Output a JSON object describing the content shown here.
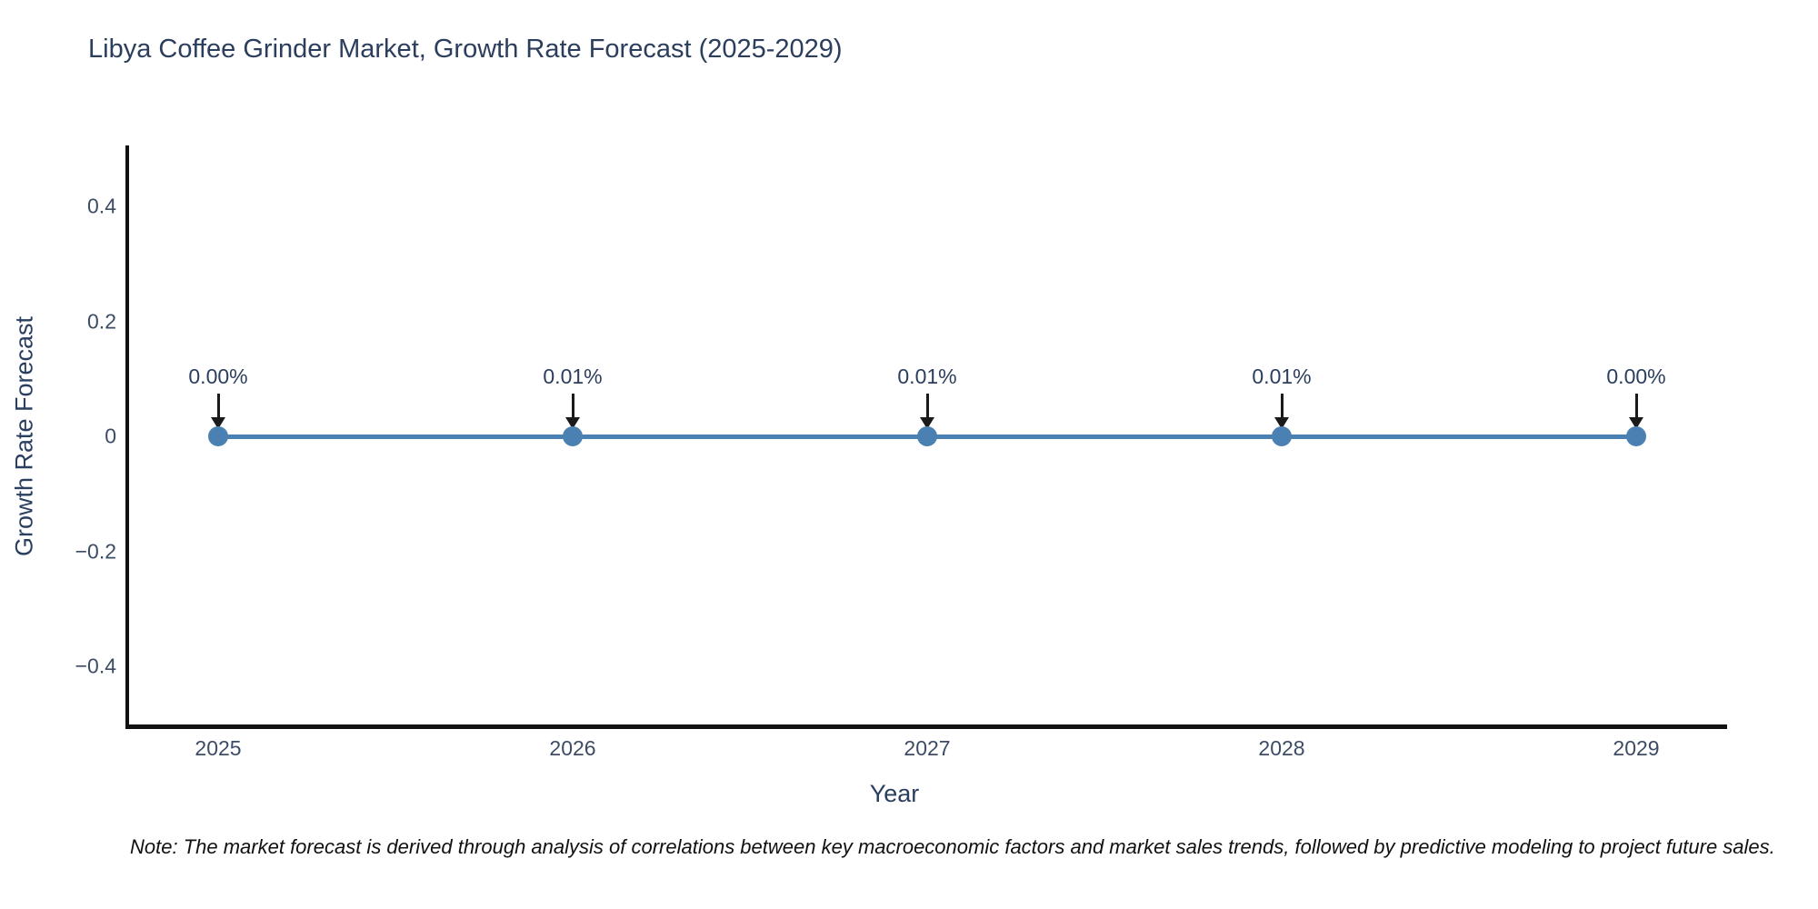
{
  "note": "Note: The market forecast is derived through analysis of correlations between key macroeconomic factors and market sales trends, followed by predictive modeling to project future sales.",
  "chart_data": {
    "type": "line",
    "title": "Libya Coffee Grinder Market, Growth Rate Forecast (2025-2029)",
    "xlabel": "Year",
    "ylabel": "Growth Rate Forecast",
    "x": [
      "2025",
      "2026",
      "2027",
      "2028",
      "2029"
    ],
    "series": [
      {
        "name": "Growth Rate Forecast",
        "values": [
          0.0,
          0.0001,
          0.0001,
          0.0001,
          0.0
        ]
      }
    ],
    "point_labels": [
      "0.00%",
      "0.01%",
      "0.01%",
      "0.01%",
      "0.00%"
    ],
    "yticks": [
      0.4,
      0.2,
      0,
      -0.2,
      -0.4
    ],
    "ytick_labels": [
      "0.4",
      "0.2",
      "0",
      "−0.2",
      "−0.4"
    ],
    "ylim": [
      -0.51,
      0.51
    ],
    "grid": false,
    "legend_position": "none",
    "annotation_style": "arrow-down",
    "colors": {
      "line": "#4b80b2",
      "marker": "#4b80b2",
      "axis": "#111111",
      "title_text": "#2c3e5d",
      "tick_text": "#3d4c66",
      "annotation_text": "#2c3e5d",
      "annotation_arrow": "#1a1a1a",
      "note_text": "#111111"
    }
  }
}
